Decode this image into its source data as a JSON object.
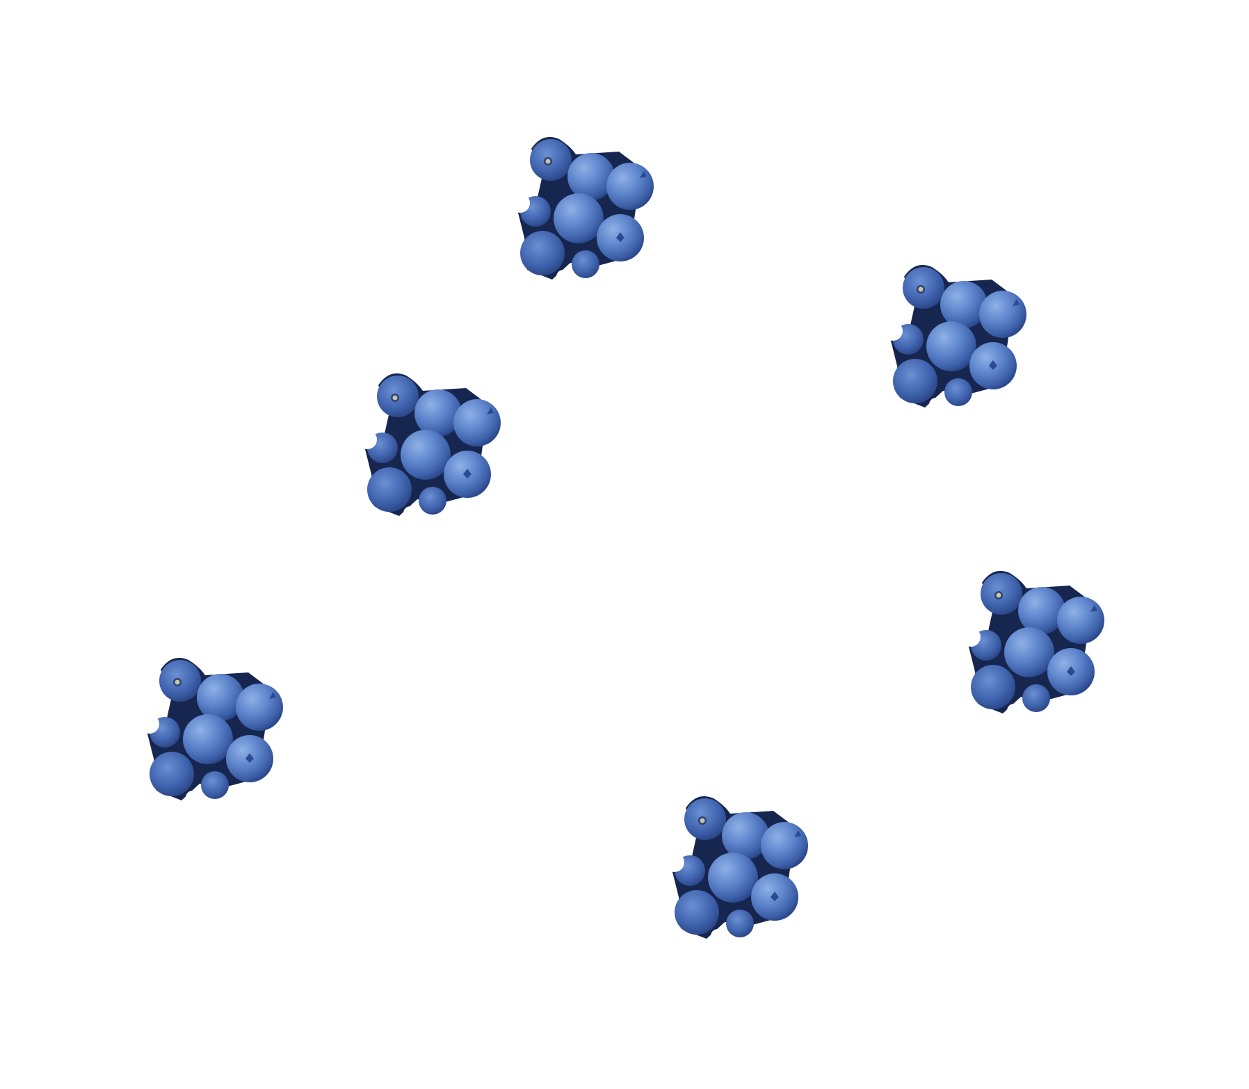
{
  "scene": {
    "background": "#ffffff",
    "subject": "blueberry-cluster",
    "cluster_count": 6,
    "colors": {
      "berry_light": "#7aa0dc",
      "berry_mid": "#4f76c2",
      "berry_dark": "#2b4a92",
      "berry_deep": "#16264f",
      "calyx": "#c8c6a4"
    }
  }
}
